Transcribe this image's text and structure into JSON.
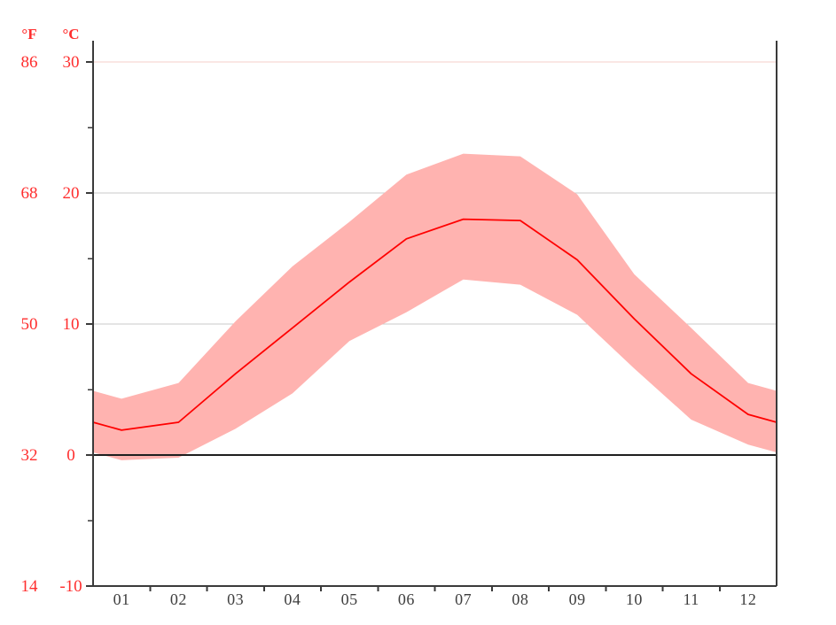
{
  "chart_data": {
    "type": "area",
    "title": "",
    "legend": "none",
    "grid": "horizontal",
    "x_axis": {
      "month_labels": [
        "01",
        "02",
        "03",
        "04",
        "05",
        "06",
        "07",
        "08",
        "09",
        "10",
        "11",
        "12"
      ]
    },
    "y_axis": {
      "unit_f": "°F",
      "unit_c": "°C",
      "f_labels": [
        "86",
        "68",
        "50",
        "32",
        "14"
      ],
      "c_labels": [
        "30",
        "20",
        "10",
        "0",
        "-10"
      ],
      "tick_values_c": [
        30,
        20,
        10,
        0,
        -10
      ],
      "minor_tick_values_c": [
        25,
        15,
        5,
        -5
      ],
      "ylim_c": [
        -10,
        31.6
      ]
    },
    "series": [
      {
        "name": "average_temperature_c",
        "values": [
          1.9,
          2.5,
          6.2,
          9.7,
          13.2,
          16.5,
          18.0,
          17.9,
          14.9,
          10.4,
          6.2,
          3.1
        ]
      },
      {
        "name": "daily_max_temperature_c",
        "values": [
          4.3,
          5.5,
          10.2,
          14.4,
          17.8,
          21.4,
          23.0,
          22.8,
          19.9,
          13.8,
          9.7,
          5.5
        ]
      },
      {
        "name": "daily_min_temperature_c",
        "values": [
          -0.4,
          -0.2,
          2.0,
          4.7,
          8.7,
          10.9,
          13.4,
          13.0,
          10.7,
          6.6,
          2.7,
          0.8
        ]
      }
    ],
    "band": "area between daily_max and daily_min",
    "line": "average_temperature"
  },
  "colors": {
    "background": "#ffffff",
    "mean_line": "#ff0000",
    "range_band": "#ffb3b0",
    "grid_pink": "#f5cfca",
    "grid_gray": "#c9c9c9",
    "zero_line": "#1f1f1f",
    "axis": "#3a3a3a",
    "label_red": "#ff2e2e",
    "label_dark": "#3e3e3e"
  }
}
